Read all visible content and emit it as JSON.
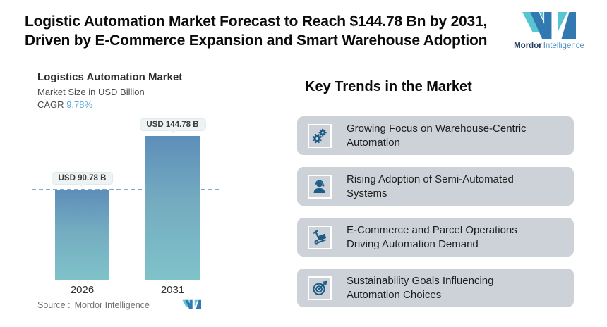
{
  "header": {
    "title_line1": "Logistic Automation Market Forecast to Reach $144.78 Bn by 2031,",
    "title_line2": "Driven by E-Commerce Expansion and Smart Warehouse Adoption",
    "brand": {
      "name_bold": "Mordor",
      "name_light": "Intelligence"
    }
  },
  "chart": {
    "title": "Logistics Automation Market",
    "subtitle": "Market Size in USD Billion",
    "cagr_label": "CAGR",
    "cagr_value": "9.78%",
    "source_label": "Source :",
    "source_value": "Mordor Intelligence"
  },
  "chart_data": {
    "type": "bar",
    "title": "Logistics Automation Market",
    "ylabel": "Market Size in USD Billion",
    "categories": [
      "2026",
      "2031"
    ],
    "values": [
      90.78,
      144.78
    ],
    "bar_value_labels": [
      "USD 90.78 B",
      "USD 144.78 B"
    ],
    "cagr_percent": 9.78,
    "reference_line_at": 90.78,
    "ylim": [
      0,
      144.78
    ],
    "grid": false,
    "legend": false,
    "source": "Mordor Intelligence"
  },
  "trends": {
    "heading": "Key Trends in the Market",
    "items": [
      {
        "icon": "gears-icon",
        "text": "Growing Focus on Warehouse-Centric Automation"
      },
      {
        "icon": "headset-person-icon",
        "text": "Rising Adoption of Semi-Automated Systems"
      },
      {
        "icon": "hand-truck-icon",
        "text": "E-Commerce and Parcel Operations Driving Automation Demand"
      },
      {
        "icon": "target-arrow-icon",
        "text": "Sustainability Goals Influencing Automation Choices"
      }
    ]
  },
  "colors": {
    "bar_gradient_top": "#5d8eb9",
    "bar_gradient_bottom": "#7fc3c9",
    "dashed_reference_line": "#7fa9d2",
    "cagr_value_blue": "#57a7d6",
    "card_background": "#cdd2d9",
    "trend_icon_blue": "#1d5c87",
    "logo_blue": "#3279b1",
    "logo_teal": "#57c5d2",
    "logo_text_dark": "#1d3a5f",
    "logo_text_light": "#4a8fc4"
  }
}
